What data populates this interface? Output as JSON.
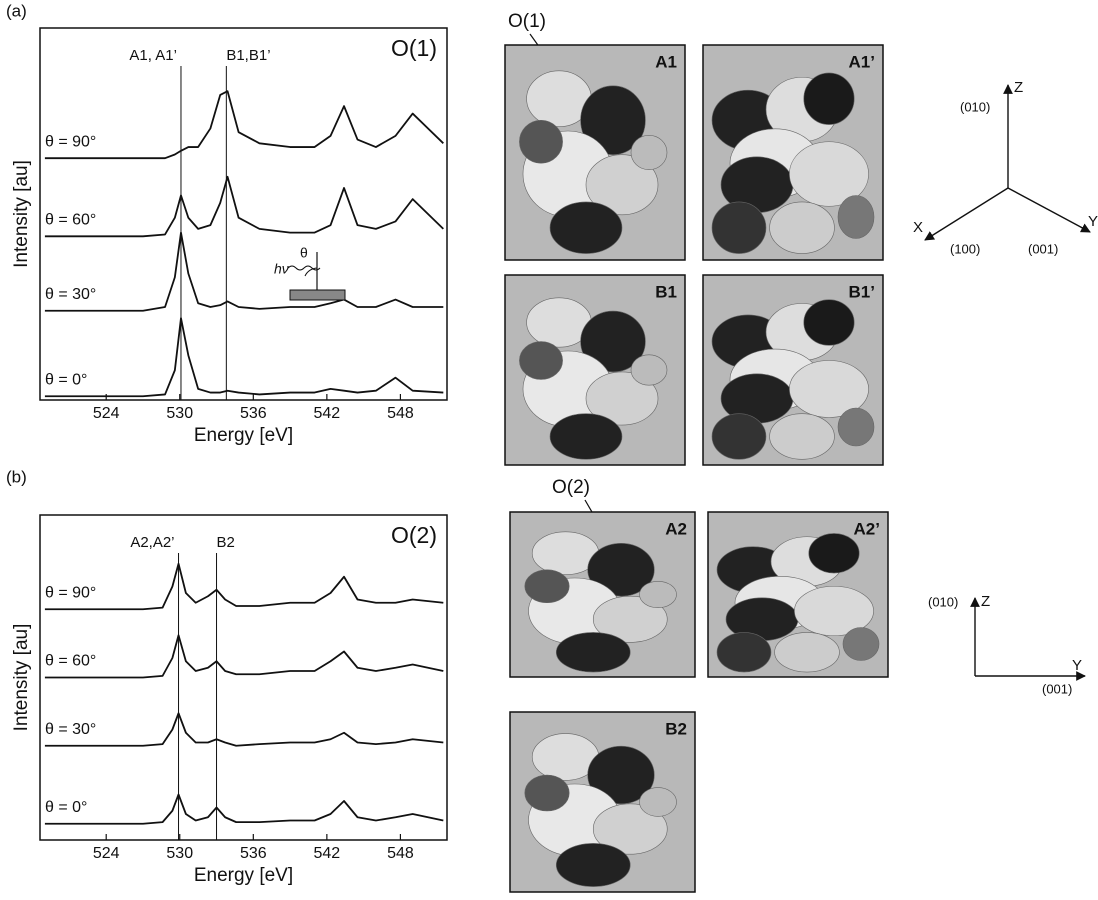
{
  "chart_data": [
    {
      "type": "line",
      "panel": "(a)",
      "title": "O(1)",
      "x_label": "Energy [eV]",
      "y_label": "Intensity [au]",
      "x": [
        519,
        524,
        527,
        528.8,
        529.6,
        530.1,
        530.7,
        531.5,
        532.5,
        533.3,
        533.9,
        534.8,
        536.5,
        539,
        541,
        542.3,
        543.4,
        544.5,
        546,
        547.6,
        549,
        551.5
      ],
      "xlim": [
        518.6,
        551.8
      ],
      "xticks": [
        524,
        530,
        536,
        542,
        548
      ],
      "ylim": [
        0,
        10
      ],
      "markers": [
        {
          "x": 530.1,
          "label": "A1, A1’"
        },
        {
          "x": 533.8,
          "label": "B1,B1’"
        }
      ],
      "series": [
        {
          "name": "θ = 0°",
          "color": "#111111",
          "values": [
            0.1,
            0.1,
            0.1,
            0.15,
            0.8,
            2.2,
            1.2,
            0.3,
            0.2,
            0.2,
            0.25,
            0.2,
            0.15,
            0.2,
            0.2,
            0.3,
            0.25,
            0.2,
            0.25,
            0.6,
            0.25,
            0.2
          ]
        },
        {
          "name": "θ = 30°",
          "color": "#111111",
          "values": [
            2.4,
            2.4,
            2.4,
            2.5,
            3.3,
            4.5,
            3.4,
            2.6,
            2.5,
            2.55,
            2.65,
            2.5,
            2.45,
            2.5,
            2.5,
            2.6,
            2.7,
            2.5,
            2.5,
            2.7,
            2.5,
            2.5
          ]
        },
        {
          "name": "θ = 60°",
          "color": "#111111",
          "values": [
            4.4,
            4.4,
            4.4,
            4.45,
            4.9,
            5.5,
            4.9,
            4.6,
            4.7,
            5.3,
            6.0,
            4.9,
            4.6,
            4.5,
            4.5,
            4.7,
            5.7,
            4.7,
            4.6,
            4.8,
            5.4,
            4.6
          ]
        },
        {
          "name": "θ = 90°",
          "color": "#111111",
          "values": [
            6.5,
            6.5,
            6.5,
            6.5,
            6.6,
            6.7,
            6.8,
            6.8,
            7.3,
            8.2,
            8.3,
            7.2,
            6.9,
            6.8,
            6.8,
            7.1,
            7.9,
            7.0,
            6.8,
            7.1,
            7.7,
            6.9
          ]
        }
      ],
      "inset": {
        "photon": "hν",
        "angle": "θ"
      }
    },
    {
      "type": "line",
      "panel": "(b)",
      "title": "O(2)",
      "x_label": "Energy [eV]",
      "y_label": "Intensity [au]",
      "x": [
        519,
        524,
        527,
        528.6,
        529.4,
        529.9,
        530.5,
        531.3,
        532.3,
        533.0,
        533.7,
        534.6,
        536.5,
        539,
        541,
        542.3,
        543.4,
        544.5,
        546,
        547.6,
        549,
        551.5
      ],
      "xlim": [
        518.6,
        551.8
      ],
      "xticks": [
        524,
        530,
        536,
        542,
        548
      ],
      "ylim": [
        0,
        10
      ],
      "markers": [
        {
          "x": 529.9,
          "label": "A2,A2’"
        },
        {
          "x": 533.0,
          "label": "B2"
        }
      ],
      "series": [
        {
          "name": "θ = 0°",
          "color": "#111111",
          "values": [
            0.5,
            0.5,
            0.5,
            0.55,
            0.9,
            1.4,
            0.8,
            0.6,
            0.7,
            1.0,
            0.7,
            0.55,
            0.55,
            0.6,
            0.6,
            0.8,
            1.2,
            0.7,
            0.6,
            0.7,
            0.8,
            0.6
          ]
        },
        {
          "name": "θ = 30°",
          "color": "#111111",
          "values": [
            2.9,
            2.9,
            2.9,
            2.95,
            3.4,
            3.9,
            3.3,
            3.0,
            3.0,
            3.1,
            3.0,
            2.9,
            2.95,
            3.0,
            3.0,
            3.1,
            3.3,
            3.0,
            2.95,
            3.0,
            3.1,
            3.0
          ]
        },
        {
          "name": "θ = 60°",
          "color": "#111111",
          "values": [
            5.0,
            5.0,
            5.0,
            5.05,
            5.6,
            6.3,
            5.5,
            5.2,
            5.3,
            5.5,
            5.2,
            5.1,
            5.1,
            5.2,
            5.2,
            5.5,
            5.8,
            5.3,
            5.2,
            5.3,
            5.4,
            5.2
          ]
        },
        {
          "name": "θ = 90°",
          "color": "#111111",
          "values": [
            7.1,
            7.1,
            7.1,
            7.15,
            7.8,
            8.5,
            7.6,
            7.3,
            7.5,
            7.7,
            7.4,
            7.2,
            7.2,
            7.3,
            7.3,
            7.6,
            8.1,
            7.4,
            7.3,
            7.3,
            7.4,
            7.3
          ]
        }
      ]
    }
  ],
  "orbitals_a": {
    "pointer": "O(1)",
    "panels": [
      "A1",
      "A1’",
      "B1",
      "B1’"
    ]
  },
  "orbitals_b": {
    "pointer": "O(2)",
    "panels": [
      "A2",
      "A2’",
      "B2"
    ]
  },
  "axes_a": {
    "z": "Z",
    "z_dir": "(010)",
    "x": "X",
    "x_dir": "(100)",
    "y": "Y",
    "y_dir": "(001)"
  },
  "axes_b": {
    "z": "Z",
    "z_dir": "(010)",
    "y": "Y",
    "y_dir": "(001)"
  }
}
